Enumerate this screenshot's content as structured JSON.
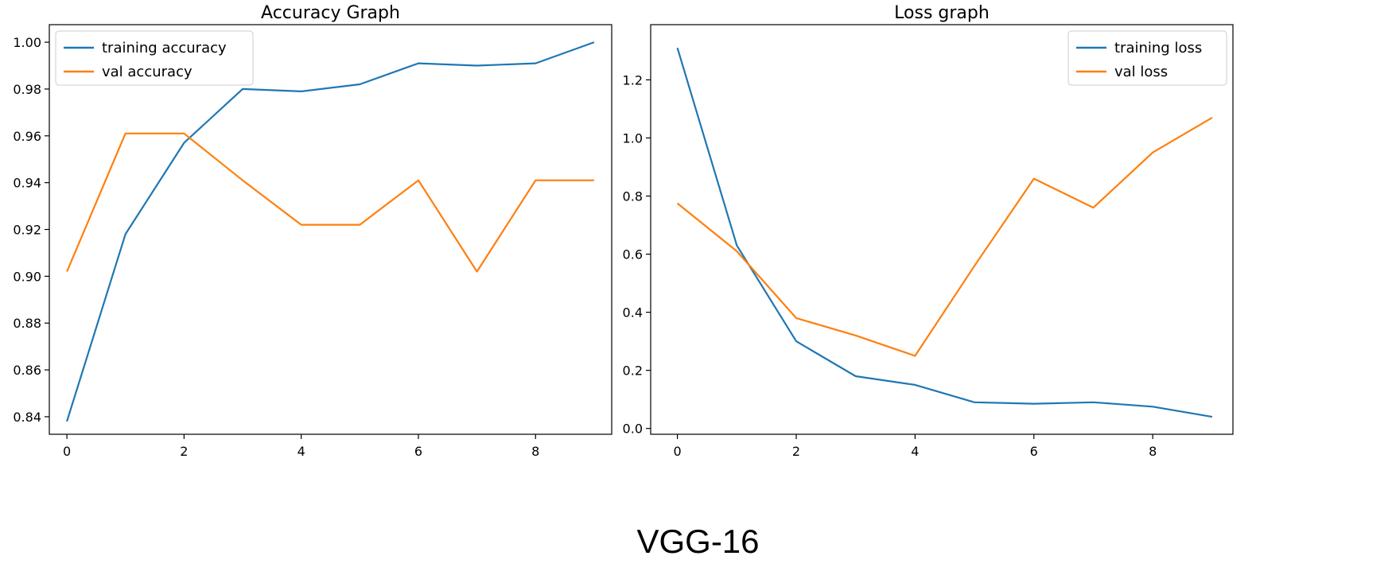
{
  "figure": {
    "caption": "VGG-16"
  },
  "chart_data": [
    {
      "type": "line",
      "title": "Accuracy Graph",
      "xlabel": "",
      "ylabel": "",
      "xlim": [
        -0.3,
        9.3
      ],
      "ylim": [
        0.8325,
        1.0075
      ],
      "xticks": [
        0,
        2,
        4,
        6,
        8
      ],
      "xtick_labels": [
        "0",
        "2",
        "4",
        "6",
        "8"
      ],
      "yticks": [
        0.84,
        0.86,
        0.88,
        0.9,
        0.92,
        0.94,
        0.96,
        0.98,
        1.0
      ],
      "ytick_labels": [
        "0.84",
        "0.86",
        "0.88",
        "0.90",
        "0.92",
        "0.94",
        "0.96",
        "0.98",
        "1.00"
      ],
      "grid": false,
      "legend_position": "top-left",
      "x": [
        0,
        1,
        2,
        3,
        4,
        5,
        6,
        7,
        8,
        9
      ],
      "series": [
        {
          "name": "training accuracy",
          "color": "#1f77b4",
          "values": [
            0.838,
            0.918,
            0.957,
            0.98,
            0.979,
            0.982,
            0.991,
            0.99,
            0.991,
            1.0
          ]
        },
        {
          "name": "val accuracy",
          "color": "#ff7f0e",
          "values": [
            0.902,
            0.961,
            0.961,
            0.941,
            0.922,
            0.922,
            0.941,
            0.902,
            0.941,
            0.941
          ]
        }
      ]
    },
    {
      "type": "line",
      "title": "Loss graph",
      "xlabel": "",
      "ylabel": "",
      "xlim": [
        -0.45,
        9.35
      ],
      "ylim": [
        -0.02,
        1.39
      ],
      "xticks": [
        0,
        2,
        4,
        6,
        8
      ],
      "xtick_labels": [
        "0",
        "2",
        "4",
        "6",
        "8"
      ],
      "yticks": [
        0.0,
        0.2,
        0.4,
        0.6,
        0.8,
        1.0,
        1.2
      ],
      "ytick_labels": [
        "0.0",
        "0.2",
        "0.4",
        "0.6",
        "0.8",
        "1.0",
        "1.2"
      ],
      "grid": false,
      "legend_position": "top-right",
      "x": [
        0,
        1,
        2,
        3,
        4,
        5,
        6,
        7,
        8,
        9
      ],
      "series": [
        {
          "name": "training loss",
          "color": "#1f77b4",
          "values": [
            1.31,
            0.63,
            0.3,
            0.18,
            0.15,
            0.09,
            0.085,
            0.09,
            0.075,
            0.04
          ]
        },
        {
          "name": "val loss",
          "color": "#ff7f0e",
          "values": [
            0.775,
            0.61,
            0.38,
            0.32,
            0.25,
            0.56,
            0.86,
            0.76,
            0.95,
            1.07
          ]
        }
      ]
    }
  ]
}
